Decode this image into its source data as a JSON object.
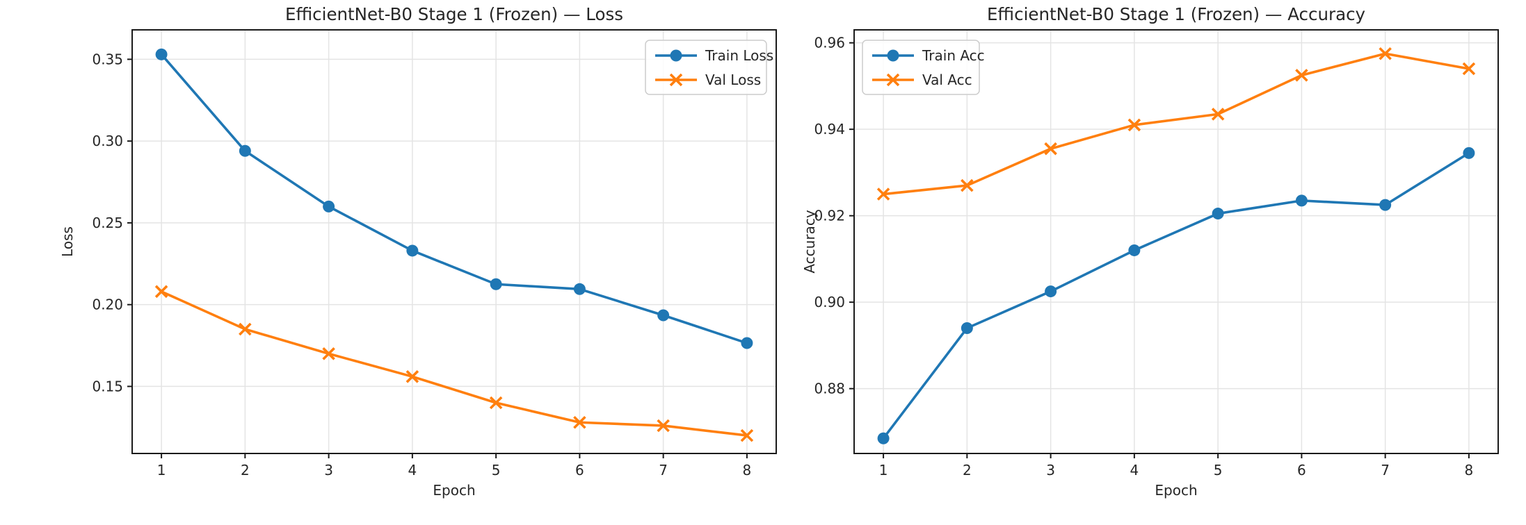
{
  "figure": {
    "background": "#ffffff",
    "text_color": "#262626",
    "grid_color": "#e4e4e4",
    "spine_color": "#1a1a1a",
    "legend_border_color": "#cccccc",
    "legend_fill": "#ffffff"
  },
  "chart_data": [
    {
      "type": "line",
      "title": "EfficientNet-B0 Stage 1 (Frozen) — Loss",
      "xlabel": "Epoch",
      "ylabel": "Loss",
      "x": [
        1,
        2,
        3,
        4,
        5,
        6,
        7,
        8
      ],
      "xtick_labels": [
        "1",
        "2",
        "3",
        "4",
        "5",
        "6",
        "7",
        "8"
      ],
      "xlim": [
        0.65,
        8.35
      ],
      "ylim": [
        0.109,
        0.368
      ],
      "yticks": [
        0.15,
        0.2,
        0.25,
        0.3,
        0.35
      ],
      "ytick_labels": [
        "0.15",
        "0.20",
        "0.25",
        "0.30",
        "0.35"
      ],
      "grid": true,
      "legend_position": "top-right",
      "series": [
        {
          "name": "Train Loss",
          "color": "#1f77b4",
          "marker": "circle",
          "values": [
            0.353,
            0.294,
            0.26,
            0.233,
            0.2125,
            0.2095,
            0.1935,
            0.1765
          ]
        },
        {
          "name": "Val Loss",
          "color": "#ff7f0e",
          "marker": "x",
          "values": [
            0.208,
            0.185,
            0.17,
            0.156,
            0.14,
            0.128,
            0.126,
            0.12
          ]
        }
      ]
    },
    {
      "type": "line",
      "title": "EfficientNet-B0 Stage 1 (Frozen) — Accuracy",
      "xlabel": "Epoch",
      "ylabel": "Accuracy",
      "x": [
        1,
        2,
        3,
        4,
        5,
        6,
        7,
        8
      ],
      "xtick_labels": [
        "1",
        "2",
        "3",
        "4",
        "5",
        "6",
        "7",
        "8"
      ],
      "xlim": [
        0.65,
        8.35
      ],
      "ylim": [
        0.865,
        0.963
      ],
      "yticks": [
        0.88,
        0.9,
        0.92,
        0.94,
        0.96
      ],
      "ytick_labels": [
        "0.88",
        "0.90",
        "0.92",
        "0.94",
        "0.96"
      ],
      "grid": true,
      "legend_position": "top-left",
      "series": [
        {
          "name": "Train Acc",
          "color": "#1f77b4",
          "marker": "circle",
          "values": [
            0.8685,
            0.894,
            0.9025,
            0.912,
            0.9205,
            0.9235,
            0.9225,
            0.9345
          ]
        },
        {
          "name": "Val Acc",
          "color": "#ff7f0e",
          "marker": "x",
          "values": [
            0.925,
            0.927,
            0.9355,
            0.941,
            0.9435,
            0.9525,
            0.9575,
            0.954
          ]
        }
      ]
    }
  ]
}
